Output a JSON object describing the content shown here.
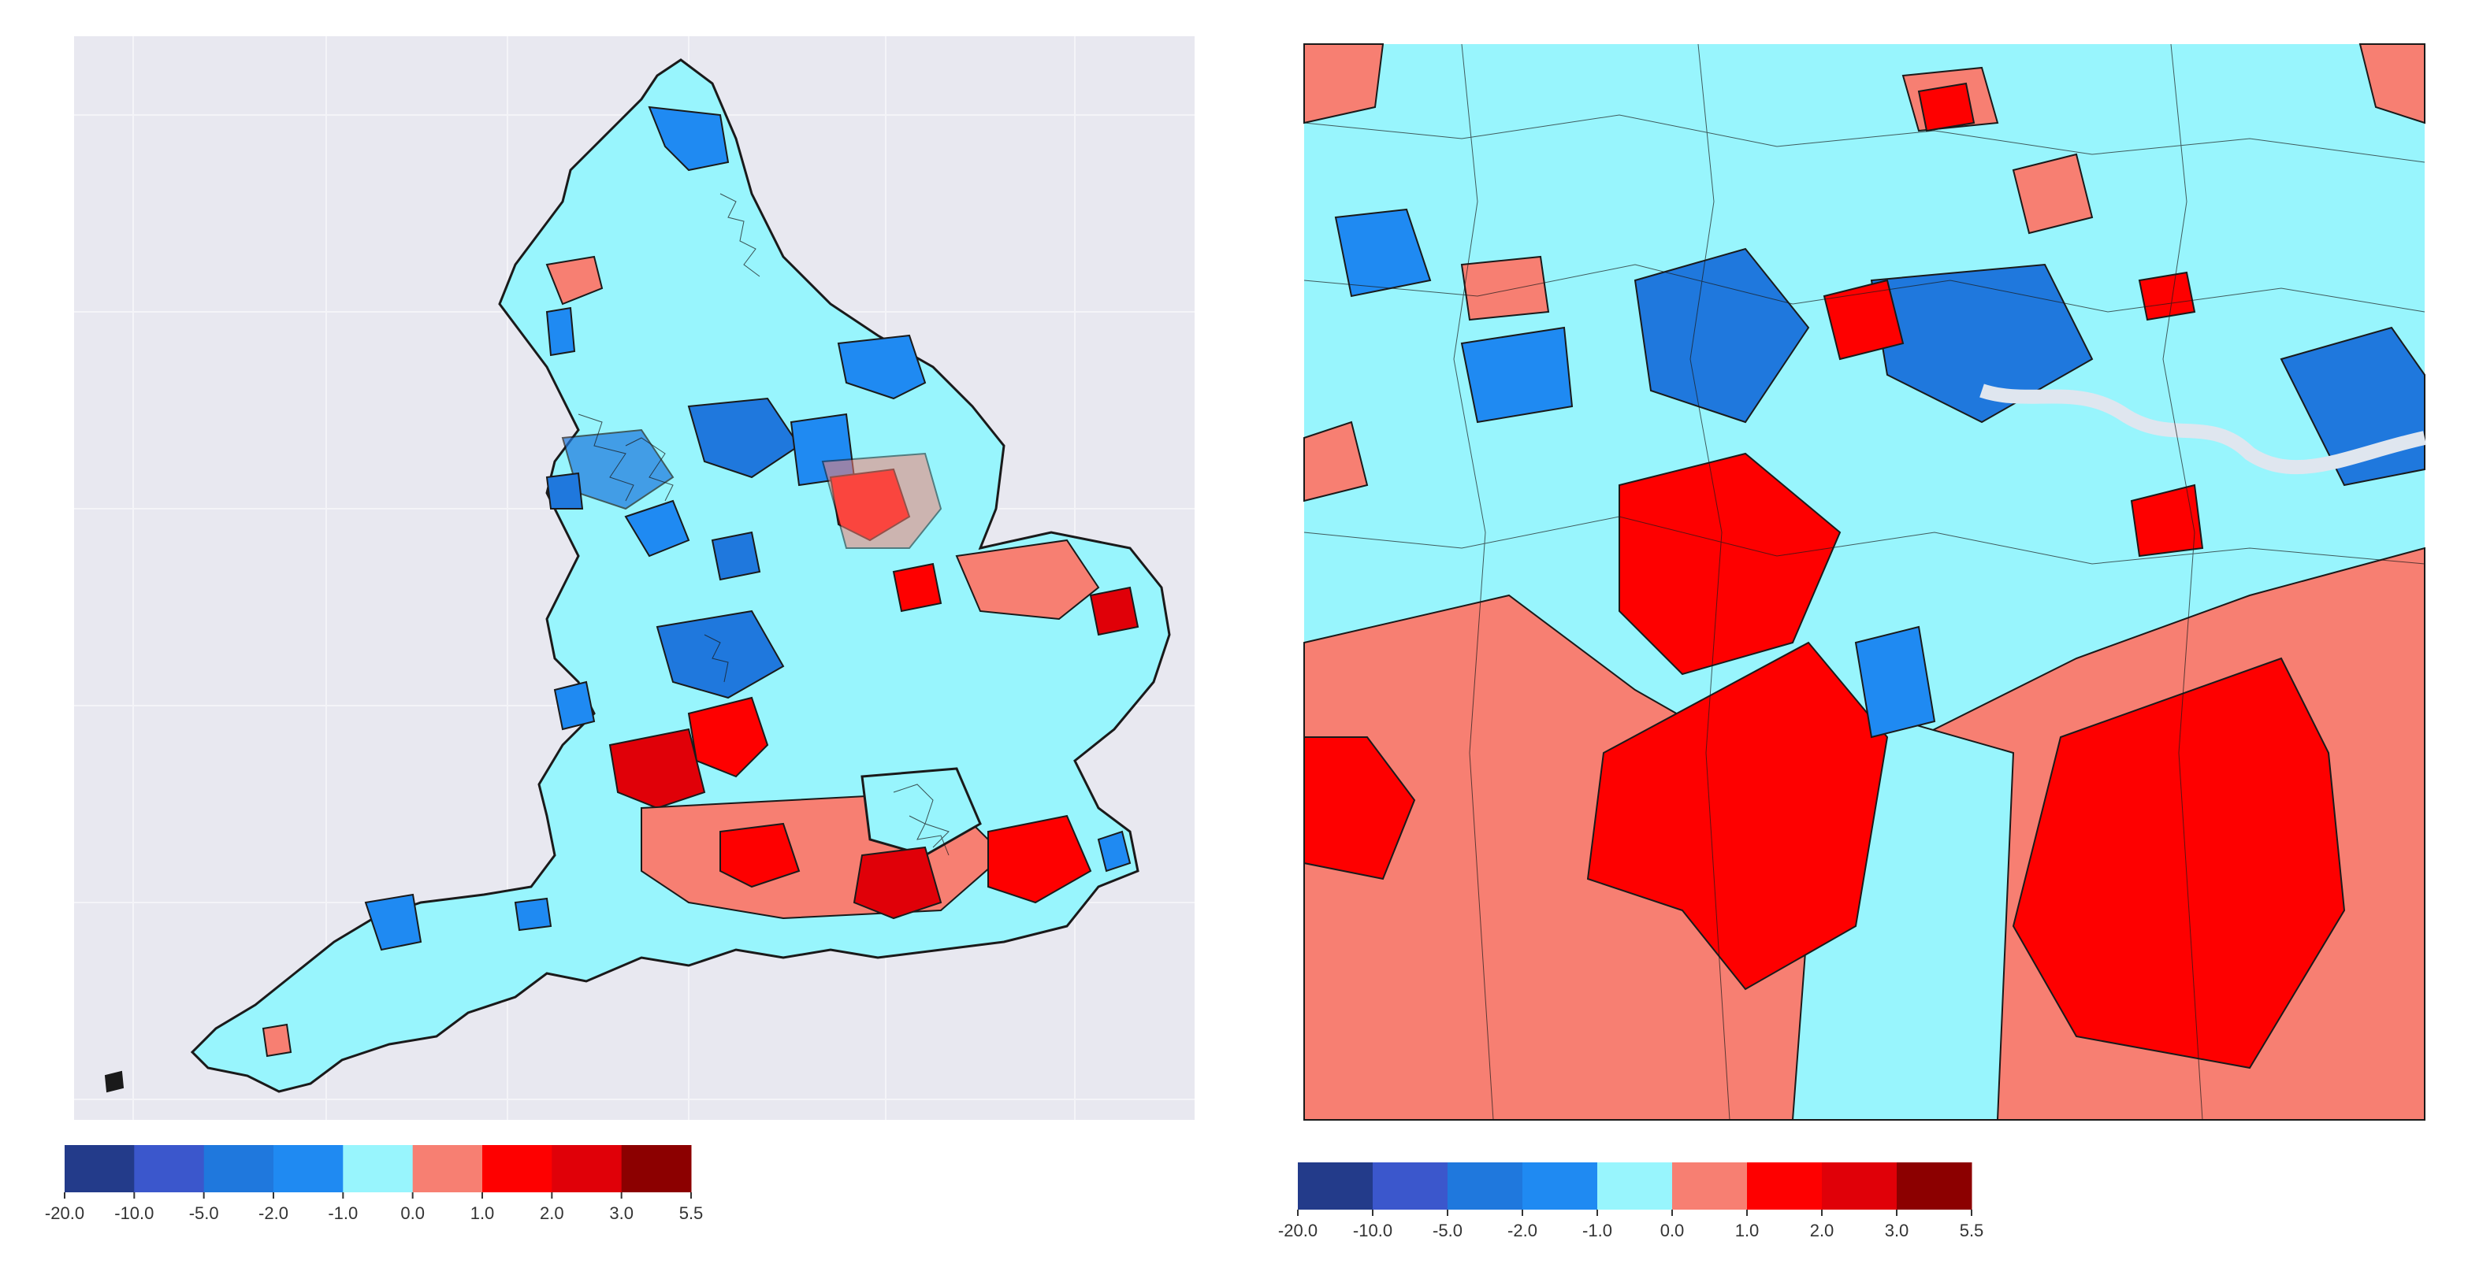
{
  "colorbar": {
    "boundaries": [
      "-20.0",
      "-10.0",
      "-5.0",
      "-2.0",
      "-1.0",
      "0.0",
      "1.0",
      "2.0",
      "3.0",
      "5.5"
    ],
    "colors": [
      "#233b8a",
      "#3b57cc",
      "#1f78dd",
      "#1f8af2",
      "#98f5fd",
      "#f77f72",
      "#fe0000",
      "#e00008",
      "#8c0000"
    ]
  },
  "map_colors": {
    "background": "#e8e8f0",
    "land_base": "#98f5fd",
    "boundary": "#1a1a1a",
    "river": "#dfe6ef"
  },
  "panels": [
    {
      "name": "england-map",
      "description_hidden": true
    },
    {
      "name": "london-map",
      "description_hidden": true
    }
  ]
}
